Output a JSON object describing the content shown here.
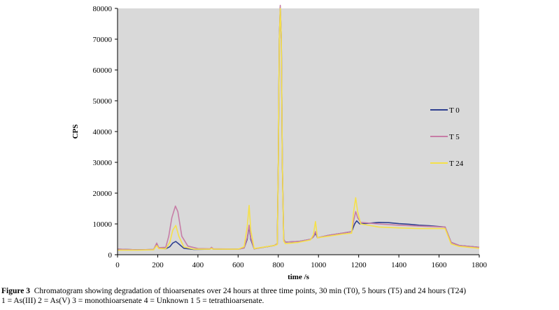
{
  "chart_data": {
    "type": "line",
    "xlabel": "time /s",
    "ylabel": "CPS",
    "xlim": [
      0,
      1800
    ],
    "ylim": [
      0,
      80000
    ],
    "xticks": [
      "0",
      "200",
      "400",
      "600",
      "800",
      "1000",
      "1200",
      "1400",
      "1600",
      "1800"
    ],
    "yticks": [
      "0",
      "10000",
      "20000",
      "30000",
      "40000",
      "50000",
      "60000",
      "70000",
      "80000"
    ],
    "grid": false,
    "plot_background": "#d9d9d9",
    "legend_position": "right",
    "series": [
      {
        "name": "T 0",
        "color": "#2e3f8f",
        "points": [
          [
            0,
            1800
          ],
          [
            100,
            1600
          ],
          [
            180,
            1700
          ],
          [
            195,
            3500
          ],
          [
            205,
            2200
          ],
          [
            240,
            1900
          ],
          [
            260,
            2600
          ],
          [
            275,
            3800
          ],
          [
            290,
            4300
          ],
          [
            305,
            3500
          ],
          [
            330,
            2100
          ],
          [
            380,
            1700
          ],
          [
            460,
            1800
          ],
          [
            468,
            2300
          ],
          [
            476,
            1800
          ],
          [
            600,
            1800
          ],
          [
            630,
            2200
          ],
          [
            645,
            5000
          ],
          [
            655,
            9300
          ],
          [
            663,
            5000
          ],
          [
            680,
            1900
          ],
          [
            780,
            3000
          ],
          [
            795,
            3500
          ],
          [
            800,
            30000
          ],
          [
            805,
            70000
          ],
          [
            810,
            80500
          ],
          [
            815,
            70000
          ],
          [
            820,
            30000
          ],
          [
            827,
            5000
          ],
          [
            835,
            4100
          ],
          [
            900,
            4300
          ],
          [
            960,
            5000
          ],
          [
            975,
            5800
          ],
          [
            985,
            7000
          ],
          [
            995,
            5500
          ],
          [
            1050,
            6300
          ],
          [
            1120,
            7000
          ],
          [
            1165,
            7500
          ],
          [
            1180,
            10000
          ],
          [
            1190,
            11000
          ],
          [
            1205,
            10000
          ],
          [
            1250,
            10200
          ],
          [
            1300,
            10500
          ],
          [
            1350,
            10400
          ],
          [
            1400,
            10100
          ],
          [
            1450,
            9900
          ],
          [
            1500,
            9600
          ],
          [
            1550,
            9400
          ],
          [
            1630,
            9000
          ],
          [
            1660,
            4000
          ],
          [
            1700,
            3000
          ],
          [
            1800,
            2400
          ]
        ]
      },
      {
        "name": "T 5",
        "color": "#c77da6",
        "points": [
          [
            0,
            1800
          ],
          [
            100,
            1600
          ],
          [
            180,
            1700
          ],
          [
            195,
            3800
          ],
          [
            205,
            2300
          ],
          [
            240,
            2400
          ],
          [
            255,
            6000
          ],
          [
            270,
            12000
          ],
          [
            288,
            15800
          ],
          [
            300,
            14000
          ],
          [
            320,
            6000
          ],
          [
            350,
            2800
          ],
          [
            400,
            2000
          ],
          [
            460,
            1900
          ],
          [
            468,
            2400
          ],
          [
            476,
            1900
          ],
          [
            600,
            1800
          ],
          [
            630,
            2200
          ],
          [
            645,
            5500
          ],
          [
            655,
            9600
          ],
          [
            663,
            5500
          ],
          [
            680,
            1900
          ],
          [
            780,
            3000
          ],
          [
            795,
            3600
          ],
          [
            800,
            30000
          ],
          [
            805,
            70000
          ],
          [
            810,
            81000
          ],
          [
            815,
            70000
          ],
          [
            820,
            30000
          ],
          [
            827,
            5000
          ],
          [
            835,
            4100
          ],
          [
            900,
            4300
          ],
          [
            960,
            5000
          ],
          [
            975,
            5800
          ],
          [
            985,
            7500
          ],
          [
            995,
            5500
          ],
          [
            1050,
            6300
          ],
          [
            1120,
            7000
          ],
          [
            1165,
            7500
          ],
          [
            1175,
            11000
          ],
          [
            1185,
            14000
          ],
          [
            1195,
            12000
          ],
          [
            1210,
            10500
          ],
          [
            1300,
            10000
          ],
          [
            1400,
            9600
          ],
          [
            1500,
            9300
          ],
          [
            1630,
            9000
          ],
          [
            1660,
            4000
          ],
          [
            1700,
            3000
          ],
          [
            1800,
            2400
          ]
        ]
      },
      {
        "name": "T 24",
        "color": "#f5e04a",
        "points": [
          [
            0,
            1500
          ],
          [
            100,
            1500
          ],
          [
            180,
            1600
          ],
          [
            195,
            3000
          ],
          [
            205,
            2000
          ],
          [
            240,
            1900
          ],
          [
            260,
            4000
          ],
          [
            275,
            8000
          ],
          [
            290,
            9500
          ],
          [
            305,
            6000
          ],
          [
            330,
            2500
          ],
          [
            380,
            1800
          ],
          [
            460,
            1800
          ],
          [
            468,
            2100
          ],
          [
            476,
            1800
          ],
          [
            600,
            1800
          ],
          [
            630,
            2600
          ],
          [
            645,
            9000
          ],
          [
            655,
            16000
          ],
          [
            663,
            8000
          ],
          [
            680,
            2000
          ],
          [
            780,
            3000
          ],
          [
            795,
            3300
          ],
          [
            800,
            30000
          ],
          [
            805,
            70000
          ],
          [
            810,
            80000
          ],
          [
            815,
            70000
          ],
          [
            820,
            30000
          ],
          [
            827,
            4500
          ],
          [
            835,
            3600
          ],
          [
            900,
            4000
          ],
          [
            960,
            4800
          ],
          [
            975,
            6500
          ],
          [
            985,
            10800
          ],
          [
            995,
            5500
          ],
          [
            1050,
            6000
          ],
          [
            1120,
            6700
          ],
          [
            1165,
            7000
          ],
          [
            1175,
            14000
          ],
          [
            1185,
            18500
          ],
          [
            1195,
            14000
          ],
          [
            1210,
            10000
          ],
          [
            1300,
            9000
          ],
          [
            1400,
            8700
          ],
          [
            1500,
            8500
          ],
          [
            1630,
            8500
          ],
          [
            1660,
            3500
          ],
          [
            1700,
            2700
          ],
          [
            1800,
            2100
          ]
        ]
      }
    ]
  },
  "caption": {
    "label": "Figure 3",
    "line1": "Chromatogram showing degradation of thioarsenates over 24 hours at three time points, 30 min (T0), 5 hours (T5) and 24 hours (T24)",
    "line2": "1 = As(III) 2 = As(V) 3 = monothioarsenate 4 = Unknown 1 5 = tetrathioarsenate."
  }
}
